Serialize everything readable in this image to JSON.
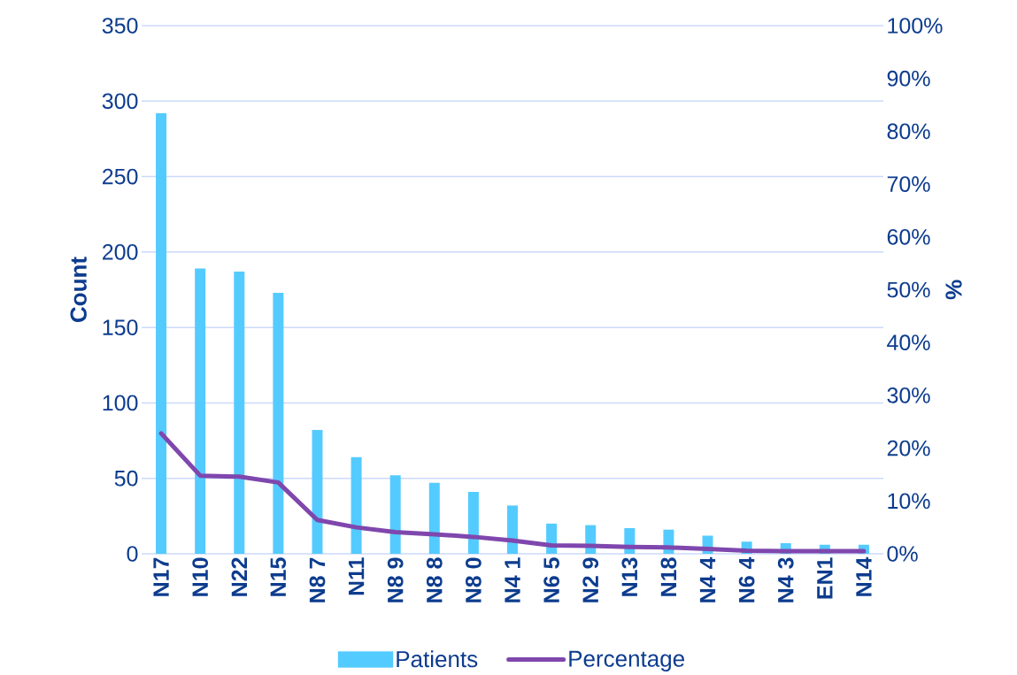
{
  "chart_data": {
    "type": "bar",
    "ylabel": "Count",
    "y2label": "%",
    "categories": [
      "N17",
      "N10",
      "N22",
      "N15",
      "N8 7",
      "N11",
      "N8 9",
      "N8 8",
      "N8 0",
      "N4 1",
      "N6 5",
      "N2 9",
      "N13",
      "N18",
      "N4 4",
      "N6 4",
      "N4 3",
      "EN1",
      "N14"
    ],
    "series": [
      {
        "name": "Patients",
        "color": "#54cbff",
        "values": [
          292,
          189,
          187,
          173,
          82,
          64,
          52,
          47,
          41,
          32,
          20,
          19,
          17,
          16,
          12,
          8,
          7,
          6,
          6
        ]
      },
      {
        "name": "Percentage",
        "type": "line",
        "axis": "y2",
        "color": "#7f47ad",
        "values": [
          22.8,
          14.8,
          14.6,
          13.5,
          6.4,
          5.0,
          4.1,
          3.7,
          3.2,
          2.5,
          1.6,
          1.5,
          1.3,
          1.2,
          0.9,
          0.6,
          0.5,
          0.5,
          0.5
        ]
      }
    ],
    "ylim": [
      0,
      350
    ],
    "yticks": [
      0,
      50,
      100,
      150,
      200,
      250,
      300,
      350
    ],
    "y2lim": [
      0,
      100
    ],
    "y2ticks": [
      {
        "value": 0,
        "label": "0%"
      },
      {
        "value": 10,
        "label": "10%"
      },
      {
        "value": 20,
        "label": "20%"
      },
      {
        "value": 30,
        "label": "30%"
      },
      {
        "value": 40,
        "label": "40%"
      },
      {
        "value": 50,
        "label": "50%"
      },
      {
        "value": 60,
        "label": "60%"
      },
      {
        "value": 70,
        "label": "70%"
      },
      {
        "value": 80,
        "label": "80%"
      },
      {
        "value": 90,
        "label": "90%"
      },
      {
        "value": 100,
        "label": "100%"
      }
    ],
    "grid": "y",
    "legend": "bottom"
  }
}
